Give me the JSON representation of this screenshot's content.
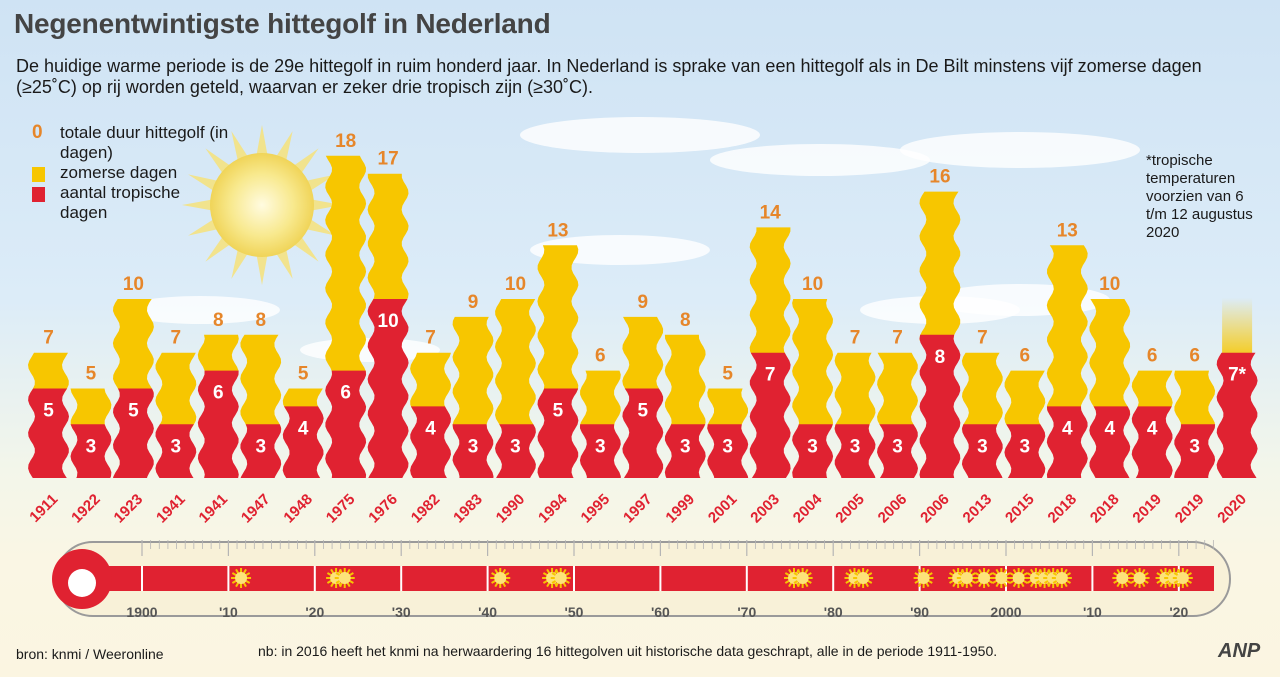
{
  "title": "Negenentwintigste hittegolf in Nederland",
  "subtitle": "De huidige warme periode is de 29e hittegolf in ruim honderd jaar. In Nederland is sprake van een hittegolf als in De Bilt minstens vijf zomerse dagen (≥25˚C) op rij worden geteld, waarvan er zeker drie tropisch zijn (≥30˚C).",
  "legend": {
    "total_symbol": "0",
    "total_label": "totale duur hittegolf (in dagen)",
    "summer_label": "zomerse dagen",
    "tropical_label": "aantal tropische dagen"
  },
  "note": "*tropische temperaturen voorzien van 6 t/m 12 augustus 2020",
  "source": "bron:  knmi / Weeronline",
  "footnote": "nb: in 2016 heeft het knmi na herwaardering 16 hittegolven uit historische data geschrapt, alle in de periode 1911-1950.",
  "brand": "ANP",
  "colors": {
    "summer": "#f7c600",
    "tropical": "#e02231",
    "total_label": "#e6862a",
    "year_label": "#e02231",
    "sun": "#f6e27a"
  },
  "chart_data": {
    "type": "bar",
    "stacked": true,
    "categories": [
      "1911",
      "1922",
      "1923",
      "1941",
      "1941",
      "1947",
      "1948",
      "1975",
      "1976",
      "1982",
      "1983",
      "1990",
      "1994",
      "1995",
      "1997",
      "1999",
      "2001",
      "2003",
      "2004",
      "2005",
      "2006",
      "2006",
      "2013",
      "2015",
      "2018",
      "2018",
      "2019",
      "2019",
      "2020"
    ],
    "series": [
      {
        "name": "aantal tropische dagen",
        "values": [
          5,
          3,
          5,
          3,
          6,
          3,
          4,
          6,
          10,
          4,
          3,
          3,
          5,
          3,
          5,
          3,
          3,
          7,
          3,
          3,
          3,
          8,
          3,
          3,
          4,
          4,
          4,
          3,
          7
        ]
      },
      {
        "name": "zomerse dagen",
        "values": [
          2,
          2,
          5,
          4,
          2,
          5,
          1,
          12,
          7,
          3,
          6,
          7,
          8,
          3,
          4,
          5,
          2,
          7,
          7,
          4,
          4,
          8,
          4,
          3,
          9,
          6,
          2,
          3,
          0
        ]
      }
    ],
    "totals": [
      "7",
      "5",
      "10",
      "7",
      "8",
      "8",
      "5",
      "18",
      "17",
      "7",
      "9",
      "10",
      "13",
      "6",
      "9",
      "8",
      "5",
      "14",
      "10",
      "7",
      "7",
      "16",
      "7",
      "6",
      "13",
      "10",
      "6",
      "6",
      ""
    ],
    "tropical_labels": [
      "5",
      "3",
      "5",
      "3",
      "6",
      "3",
      "4",
      "6",
      "10",
      "4",
      "3",
      "3",
      "5",
      "3",
      "5",
      "3",
      "3",
      "7",
      "3",
      "3",
      "3",
      "8",
      "3",
      "3",
      "4",
      "4",
      "4",
      "3",
      "7*"
    ],
    "timeline": {
      "tick_labels": [
        "1900",
        "'10",
        "'20",
        "'30",
        "'40",
        "'50",
        "'60",
        "'70",
        "'80",
        "'90",
        "2000",
        "'10",
        "'20"
      ],
      "range": [
        1896,
        2025
      ],
      "heatwave_years": [
        1911,
        1922,
        1923,
        1941,
        1947,
        1948,
        1975,
        1976,
        1982,
        1983,
        1990,
        1994,
        1995,
        1997,
        1999,
        2001,
        2003,
        2004,
        2005,
        2006,
        2013,
        2015,
        2018,
        2019,
        2020
      ]
    }
  }
}
